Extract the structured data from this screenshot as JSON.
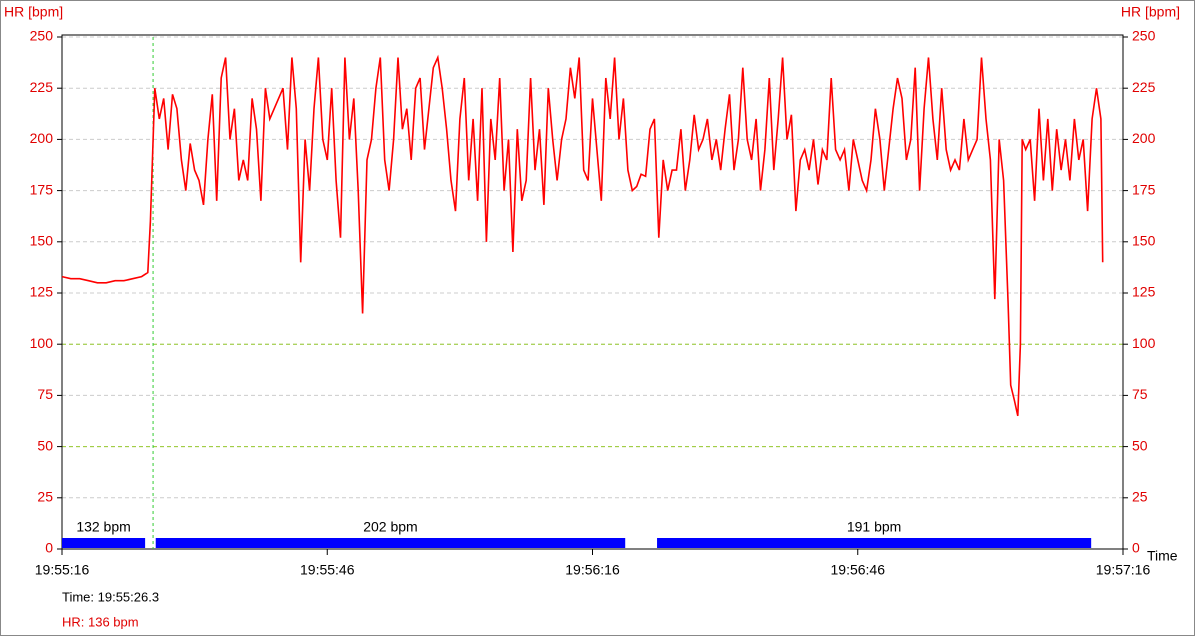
{
  "chart_data": {
    "type": "line",
    "y_label": "HR [bpm]",
    "y2_label": "HR [bpm]",
    "x_label": "Time",
    "xlim": [
      0,
      120
    ],
    "xticks": [
      {
        "value": 0,
        "label": "19:55:16"
      },
      {
        "value": 30,
        "label": "19:55:46"
      },
      {
        "value": 60,
        "label": "19:56:16"
      },
      {
        "value": 90,
        "label": "19:56:46"
      },
      {
        "value": 120,
        "label": "19:57:16"
      }
    ],
    "ylim": [
      0,
      250
    ],
    "yticks": [
      0,
      25,
      50,
      75,
      100,
      125,
      150,
      175,
      200,
      225,
      250
    ],
    "grid": true,
    "reference_lines": [
      100,
      50
    ],
    "series": [
      {
        "name": "HR",
        "color": "#ff0000",
        "x": [
          0,
          1,
          2,
          3,
          4,
          5,
          6,
          7,
          8,
          9,
          9.7,
          10,
          10.5,
          11,
          11.5,
          12,
          12.5,
          13,
          13.5,
          14,
          14.5,
          15,
          15.5,
          16,
          16.5,
          17,
          17.5,
          18,
          18.5,
          19,
          19.5,
          20,
          20.5,
          21,
          21.5,
          22,
          22.5,
          23,
          23.5,
          24,
          25,
          25.5,
          26,
          26.5,
          27,
          27.5,
          28,
          28.5,
          29,
          29.5,
          30,
          30.5,
          31,
          31.5,
          32,
          32.5,
          33,
          33.5,
          34,
          34.5,
          35,
          35.5,
          36,
          36.5,
          37,
          37.5,
          38,
          38.5,
          39,
          39.5,
          40,
          40.5,
          41,
          41.5,
          42,
          42.5,
          43,
          43.5,
          44,
          44.5,
          45,
          45.5,
          46,
          46.5,
          47,
          47.5,
          48,
          48.5,
          49,
          49.5,
          50,
          50.5,
          51,
          51.5,
          52,
          52.5,
          53,
          53.5,
          54,
          54.5,
          55,
          55.5,
          56,
          56.5,
          57,
          57.5,
          58,
          58.5,
          59,
          59.5,
          60,
          60.5,
          61,
          61.5,
          62,
          62.5,
          63,
          63.5,
          64,
          64.5,
          65,
          65.5,
          66,
          66.5,
          67,
          67.5,
          68,
          68.5,
          69,
          69.5,
          70,
          70.5,
          71,
          71.5,
          72,
          72.5,
          73,
          73.5,
          74,
          74.5,
          75,
          75.5,
          76,
          76.5,
          77,
          77.5,
          78,
          78.5,
          79,
          79.5,
          80,
          80.5,
          81,
          81.5,
          82,
          82.5,
          83,
          83.5,
          84,
          84.5,
          85,
          85.5,
          86,
          86.5,
          87,
          87.5,
          88,
          88.5,
          89,
          89.5,
          90,
          90.5,
          91,
          91.5,
          92,
          92.5,
          93,
          93.5,
          94,
          94.5,
          95,
          95.5,
          96,
          96.5,
          97,
          97.5,
          98,
          98.5,
          99,
          99.5,
          100,
          100.5,
          101,
          101.5,
          102,
          102.5,
          103,
          103.5,
          104,
          104.5,
          105,
          105.5,
          106,
          106.5,
          107,
          107.3,
          107.7,
          108.1,
          108.4,
          108.6,
          109,
          109.5,
          110,
          110.5,
          111,
          111.5,
          112,
          112.5,
          113,
          113.5,
          114,
          114.5,
          115,
          115.5,
          116,
          116.5,
          117,
          117.5,
          117.7
        ],
        "values": [
          133,
          132,
          132,
          131,
          130,
          130,
          131,
          131,
          132,
          133,
          135,
          160,
          225,
          210,
          220,
          195,
          222,
          215,
          190,
          175,
          198,
          185,
          180,
          168,
          200,
          222,
          170,
          230,
          240,
          200,
          215,
          180,
          190,
          180,
          220,
          205,
          170,
          225,
          210,
          215,
          225,
          195,
          240,
          215,
          140,
          200,
          175,
          215,
          240,
          200,
          190,
          225,
          180,
          152,
          240,
          200,
          220,
          175,
          115,
          190,
          200,
          225,
          240,
          190,
          175,
          200,
          240,
          205,
          215,
          190,
          225,
          230,
          195,
          215,
          235,
          240,
          225,
          205,
          180,
          165,
          210,
          230,
          180,
          210,
          170,
          225,
          150,
          210,
          190,
          230,
          175,
          200,
          145,
          205,
          170,
          180,
          230,
          185,
          205,
          168,
          225,
          200,
          180,
          200,
          210,
          235,
          220,
          240,
          185,
          180,
          220,
          195,
          170,
          230,
          210,
          240,
          200,
          220,
          185,
          175,
          177,
          183,
          182,
          205,
          210,
          152,
          190,
          175,
          185,
          185,
          205,
          175,
          190,
          212,
          195,
          200,
          210,
          190,
          200,
          185,
          205,
          222,
          185,
          200,
          235,
          200,
          190,
          210,
          175,
          195,
          230,
          185,
          210,
          240,
          200,
          212,
          165,
          190,
          195,
          185,
          200,
          178,
          195,
          190,
          230,
          195,
          190,
          195,
          175,
          200,
          190,
          180,
          175,
          190,
          215,
          200,
          175,
          195,
          215,
          230,
          220,
          190,
          200,
          235,
          175,
          215,
          240,
          210,
          190,
          225,
          195,
          185,
          190,
          185,
          210,
          190,
          195,
          200,
          240,
          210,
          190,
          122,
          200,
          180,
          120,
          80,
          73,
          65,
          100,
          200,
          195,
          200,
          170,
          215,
          180,
          210,
          175,
          205,
          185,
          200,
          180,
          210,
          190,
          200,
          165,
          210,
          225,
          210,
          140
        ]
      }
    ],
    "segments": [
      {
        "start": 0,
        "end": 9.4,
        "value": 132,
        "label": "132 bpm"
      },
      {
        "start": 10.6,
        "end": 63.7,
        "value": 202,
        "label": "202 bpm"
      },
      {
        "start": 67.3,
        "end": 116.4,
        "value": 191,
        "label": "191 bpm"
      }
    ],
    "segment_color": "#0000ff",
    "cursor": {
      "x": 10.3,
      "time_label": "Time: 19:55:26.3",
      "hr_label": "HR: 136 bpm"
    }
  }
}
